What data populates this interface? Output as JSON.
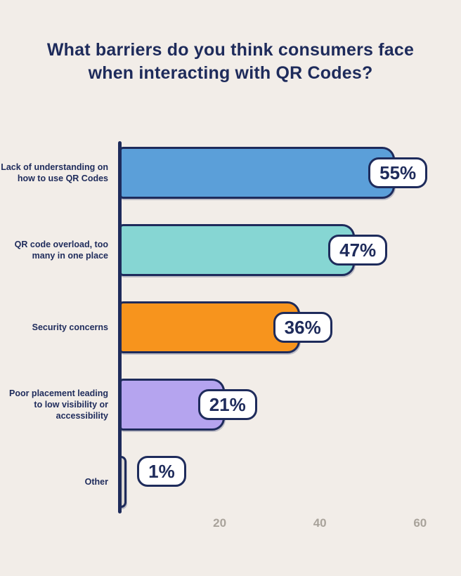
{
  "title": "What barriers do you think consumers face when interacting with QR Codes?",
  "colors": {
    "background": "#f2ede8",
    "navy": "#1e2b5b",
    "tick_gray": "#a9a39b",
    "badge_background": "#ffffff"
  },
  "chart_data": {
    "type": "bar",
    "orientation": "horizontal",
    "title": "What barriers do you think consumers face when interacting with QR Codes?",
    "categories": [
      "Lack of understanding on how to use QR Codes",
      "QR code overload, too many in one place",
      "Security concerns",
      "Poor placement leading to low visibility or accessibility",
      "Other"
    ],
    "values": [
      55,
      47,
      36,
      21,
      1
    ],
    "value_labels": [
      "55%",
      "47%",
      "36%",
      "21%",
      "1%"
    ],
    "bar_colors": [
      "#5b9fd9",
      "#86d6d3",
      "#f7941d",
      "#b5a4ef",
      "#dcd7d1"
    ],
    "xlim": [
      0,
      60
    ],
    "x_ticks": [
      20,
      40,
      60
    ],
    "grid": false,
    "legend": "none"
  }
}
